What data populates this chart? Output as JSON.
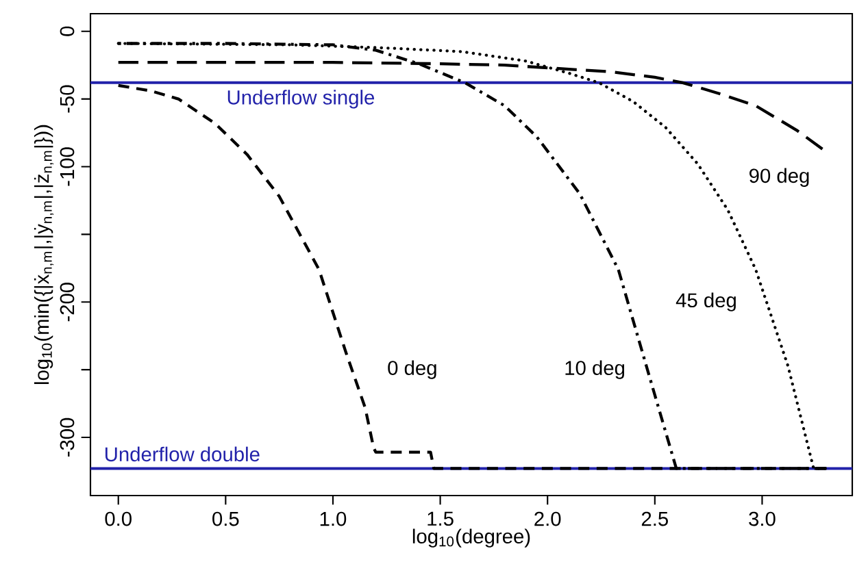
{
  "chart_data": {
    "type": "line",
    "xlabel": "log$_{10}$(degree)",
    "ylabel": "log$_{10}$(min({|ẋ$_{n,m}$|,|ẏ$_{n,m}$|,|ż$_{n,m}$|}))",
    "xlim": [
      -0.13,
      3.42
    ],
    "ylim": [
      -343,
      13
    ],
    "xticks": [
      {
        "value": 0,
        "label": "0.0"
      },
      {
        "value": 0.5,
        "label": "0.5"
      },
      {
        "value": 1,
        "label": "1.0"
      },
      {
        "value": 1.5,
        "label": "1.5"
      },
      {
        "value": 2,
        "label": "2.0"
      },
      {
        "value": 2.5,
        "label": "2.5"
      },
      {
        "value": 3,
        "label": "3.0"
      }
    ],
    "yticks": [
      0,
      -50,
      -100,
      {
        "value": -150,
        "label": null
      },
      -200,
      {
        "value": -250,
        "label": null
      },
      -300
    ],
    "series": [
      {
        "name": "0 deg",
        "color": "#000000",
        "line_style": "dashed",
        "x": [
          0,
          0.15,
          0.28,
          0.45,
          0.6,
          0.75,
          0.935,
          1.06,
          1.15,
          1.19,
          1.2,
          1.455,
          1.47,
          3.3
        ],
        "values": [
          -40,
          -44,
          -50,
          -68,
          -91,
          -122,
          -176,
          -237,
          -278,
          -308,
          -311,
          -311,
          -323,
          -323
        ]
      },
      {
        "name": "10 deg",
        "color": "#000000",
        "line_style": "dashdot",
        "x": [
          0,
          0.5,
          1.0,
          1.2,
          1.4,
          1.615,
          1.8,
          1.95,
          2.15,
          2.33,
          2.46,
          2.6,
          3.3
        ],
        "values": [
          -9,
          -9,
          -10,
          -14,
          -24,
          -38,
          -55,
          -78,
          -120,
          -176,
          -247,
          -323,
          -323
        ]
      },
      {
        "name": "45 deg",
        "color": "#000000",
        "line_style": "dotted",
        "x": [
          0,
          0.8,
          1.2,
          1.6,
          1.9,
          2.1,
          2.24,
          2.4,
          2.55,
          2.7,
          2.84,
          2.97,
          3.12,
          3.24,
          3.3
        ],
        "values": [
          -9,
          -10,
          -12,
          -15,
          -22,
          -31,
          -38,
          -52,
          -71,
          -98,
          -132,
          -176,
          -247,
          -323,
          -323
        ]
      },
      {
        "name": "90 deg",
        "color": "#000000",
        "line_style": "longdash",
        "x": [
          0,
          1.0,
          1.5,
          1.8,
          2.0,
          2.3,
          2.5,
          2.63,
          2.8,
          2.97,
          3.16,
          3.29
        ],
        "values": [
          -23,
          -23,
          -24,
          -25,
          -27,
          -30,
          -34,
          -38,
          -46,
          -55,
          -73,
          -88
        ]
      }
    ],
    "ref_lines": [
      {
        "axis": "y",
        "value": -38,
        "label": "Underflow single",
        "color": "#2222aa"
      },
      {
        "axis": "y",
        "value": -323,
        "label": "Underflow double",
        "color": "#2222aa"
      }
    ]
  }
}
